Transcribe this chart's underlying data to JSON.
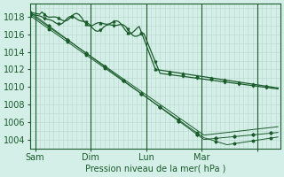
{
  "bg_color": "#d4eee8",
  "grid_color": "#b8d8cc",
  "line_color": "#1a5c2a",
  "ylabel": "Pression niveau de la mer( hPa )",
  "ylim": [
    1003.0,
    1019.5
  ],
  "yticks": [
    1004,
    1006,
    1008,
    1010,
    1012,
    1014,
    1016,
    1018
  ],
  "xlim": [
    0,
    108
  ],
  "xtick_positions": [
    2,
    26,
    50,
    74,
    98
  ],
  "xtick_labels": [
    "Sam",
    "Dim",
    "Lun",
    "Mar",
    ""
  ],
  "vline_positions": [
    2,
    26,
    50,
    74,
    98
  ]
}
